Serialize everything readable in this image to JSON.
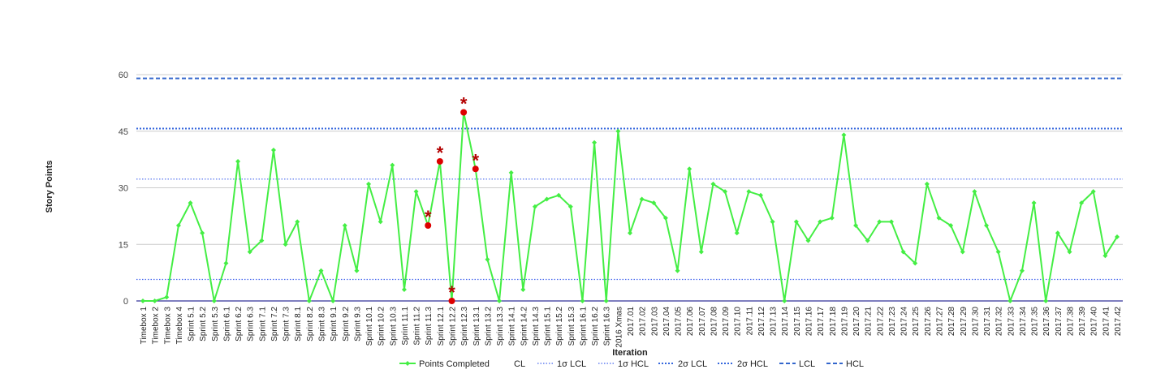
{
  "chart_data": {
    "type": "line",
    "xlabel": "Iteration",
    "ylabel": "Story Points",
    "ylim": [
      0,
      60
    ],
    "yticks": [
      0,
      15,
      30,
      45,
      60
    ],
    "grid": true,
    "legend_position": "bottom",
    "categories": [
      "Timebox 1",
      "Timebox 2",
      "Timebox 3",
      "Timebox 4",
      "Sprint 5.1",
      "Sprint 5.2",
      "Sprint 5.3",
      "Sprint 6.1",
      "Sprint 6.2",
      "Sprint 6.3",
      "Sprint 7.1",
      "Sprint 7.2",
      "Sprint 7.3",
      "Sprint 8.1",
      "Sprint 8.2",
      "Sprint 8.3",
      "Sprint 9.1",
      "Sprint 9.2",
      "Sprint 9.3",
      "Sprint 10.1",
      "Sprint 10.2",
      "Sprint 10.3",
      "Sprint 11.1",
      "Sprint 11.2",
      "Sprint 11.3",
      "Sprint 12.1",
      "Sprint 12.2",
      "Sprint 12.3",
      "Sprint 13.1",
      "Sprint 13.2",
      "Sprint 13.3",
      "Sprint 14.1",
      "Sprint 14.2",
      "Sprint 14.3",
      "Sprint 15.1",
      "Sprint 15.2",
      "Sprint 15.3",
      "Sprint 16.1",
      "Sprint 16.2",
      "Sprint 16.3",
      "2016 Xmas",
      "2017.01",
      "2017.02",
      "2017.03",
      "2017.04",
      "2017.05",
      "2017.06",
      "2017.07",
      "2017.08",
      "2017.09",
      "2017.10",
      "2017.11",
      "2017.12",
      "2017.13",
      "2017.14",
      "2017.15",
      "2017.16",
      "2017.17",
      "2017.18",
      "2017.19",
      "2017.20",
      "2017.21",
      "2017.22",
      "2017.23",
      "2017.24",
      "2017.25",
      "2017.26",
      "2017.27",
      "2017.28",
      "2017.29",
      "2017.30",
      "2017.31",
      "2017.32",
      "2017.33",
      "2017.34",
      "2017.35",
      "2017.36",
      "2017.37",
      "2017.38",
      "2017.39",
      "2017.40",
      "2017.41",
      "2017.42"
    ],
    "series": [
      {
        "name": "Points Completed",
        "color": "#44ee44",
        "values": [
          0,
          0,
          1,
          20,
          26,
          18,
          0,
          10,
          37,
          13,
          16,
          40,
          15,
          21,
          0,
          8,
          0,
          20,
          8,
          31,
          21,
          36,
          3,
          29,
          20,
          37,
          0,
          50,
          35,
          11,
          0,
          34,
          3,
          25,
          27,
          28,
          25,
          0,
          42,
          0,
          45,
          18,
          27,
          26,
          22,
          8,
          35,
          13,
          31,
          29,
          18,
          29,
          28,
          21,
          0,
          21,
          16,
          21,
          22,
          44,
          20,
          16,
          21,
          21,
          13,
          10,
          31,
          22,
          20,
          13,
          29,
          20,
          13,
          0,
          8,
          26,
          0,
          18,
          13,
          26,
          29,
          12,
          17
        ]
      }
    ],
    "outliers": [
      {
        "category": "Sprint 11.3",
        "value": 20,
        "marker": "*"
      },
      {
        "category": "Sprint 12.1",
        "value": 37,
        "marker": "*"
      },
      {
        "category": "Sprint 12.2",
        "value": 0,
        "marker": "*"
      },
      {
        "category": "Sprint 12.3",
        "value": 50,
        "marker": "*"
      },
      {
        "category": "Sprint 13.1",
        "value": 35,
        "marker": "*"
      }
    ],
    "control_lines": [
      {
        "name": "CL",
        "value": null,
        "color": "#ffffff",
        "style": "none"
      },
      {
        "name": "1σ LCL",
        "value": 5.7,
        "color": "#4466ee",
        "style": "dotted-thin"
      },
      {
        "name": "1σ HCL",
        "value": 32.3,
        "color": "#4466ee",
        "style": "dotted-thin"
      },
      {
        "name": "2σ LCL",
        "value": null,
        "color": "#3366dd",
        "style": "dotted"
      },
      {
        "name": "2σ HCL",
        "value": 45.7,
        "color": "#3366dd",
        "style": "dotted"
      },
      {
        "name": "LCL",
        "value": null,
        "color": "#3366cc",
        "style": "dashed"
      },
      {
        "name": "HCL",
        "value": 59,
        "color": "#3366cc",
        "style": "dashed"
      }
    ],
    "colors": {
      "series": "#44ee44",
      "outlier_marker": "#dd0000",
      "outlier_star": "#b30000",
      "grid": "#cccccc",
      "baseline": "#333399"
    }
  }
}
